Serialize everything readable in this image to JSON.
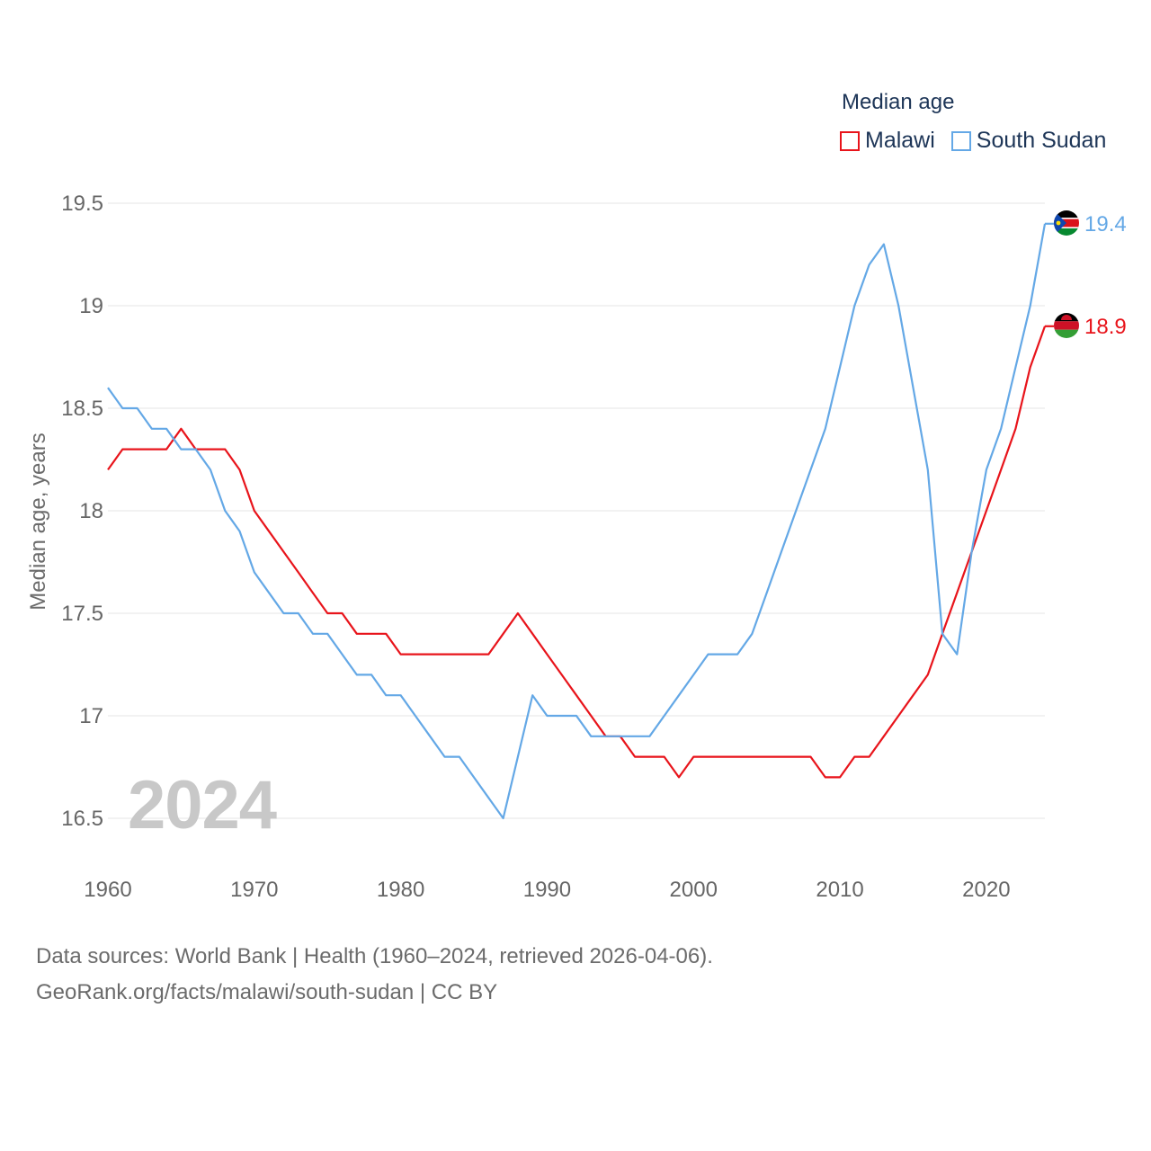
{
  "legend": {
    "title": "Median age",
    "items": [
      {
        "name": "Malawi",
        "color": "#e8141b"
      },
      {
        "name": "South Sudan",
        "color": "#64a8e6"
      }
    ]
  },
  "year_label": "2024",
  "source": {
    "line1": "Data sources: World Bank | Health (1960–2024, retrieved 2026-04-06).",
    "line2": "GeoRank.org/facts/malawi/south-sudan | CC BY"
  },
  "chart_data": {
    "type": "line",
    "title": "Median age",
    "xlabel": "",
    "ylabel": "Median age, years",
    "xlim": [
      1960,
      2024
    ],
    "ylim": [
      16.3,
      19.6
    ],
    "x_ticks": [
      1960,
      1970,
      1980,
      1990,
      2000,
      2010,
      2020
    ],
    "y_ticks": [
      {
        "value": 16.5,
        "label": "16.5"
      },
      {
        "value": 17,
        "label": "17"
      },
      {
        "value": 17.5,
        "label": "17.5"
      },
      {
        "value": 18,
        "label": "18"
      },
      {
        "value": 18.5,
        "label": "18.5"
      },
      {
        "value": 19,
        "label": "19"
      },
      {
        "value": 19.5,
        "label": "19.5"
      }
    ],
    "x": [
      1960,
      1961,
      1962,
      1963,
      1964,
      1965,
      1966,
      1967,
      1968,
      1969,
      1970,
      1971,
      1972,
      1973,
      1974,
      1975,
      1976,
      1977,
      1978,
      1979,
      1980,
      1981,
      1982,
      1983,
      1984,
      1985,
      1986,
      1987,
      1988,
      1989,
      1990,
      1991,
      1992,
      1993,
      1994,
      1995,
      1996,
      1997,
      1998,
      1999,
      2000,
      2001,
      2002,
      2003,
      2004,
      2005,
      2006,
      2007,
      2008,
      2009,
      2010,
      2011,
      2012,
      2013,
      2014,
      2015,
      2016,
      2017,
      2018,
      2019,
      2020,
      2021,
      2022,
      2023,
      2024
    ],
    "series": [
      {
        "name": "Malawi",
        "color": "#e8141b",
        "end_label": "18.9",
        "values": [
          18.2,
          18.3,
          18.3,
          18.3,
          18.3,
          18.4,
          18.3,
          18.3,
          18.3,
          18.2,
          18.0,
          17.9,
          17.8,
          17.7,
          17.6,
          17.5,
          17.5,
          17.4,
          17.4,
          17.4,
          17.3,
          17.3,
          17.3,
          17.3,
          17.3,
          17.3,
          17.3,
          17.4,
          17.5,
          17.4,
          17.3,
          17.2,
          17.1,
          17.0,
          16.9,
          16.9,
          16.8,
          16.8,
          16.8,
          16.7,
          16.8,
          16.8,
          16.8,
          16.8,
          16.8,
          16.8,
          16.8,
          16.8,
          16.8,
          16.7,
          16.7,
          16.8,
          16.8,
          16.9,
          17.0,
          17.1,
          17.2,
          17.4,
          17.6,
          17.8,
          18.0,
          18.2,
          18.4,
          18.7,
          18.9
        ]
      },
      {
        "name": "South Sudan",
        "color": "#64a8e6",
        "end_label": "19.4",
        "values": [
          18.6,
          18.5,
          18.5,
          18.4,
          18.4,
          18.3,
          18.3,
          18.2,
          18.0,
          17.9,
          17.7,
          17.6,
          17.5,
          17.5,
          17.4,
          17.4,
          17.3,
          17.2,
          17.2,
          17.1,
          17.1,
          17.0,
          16.9,
          16.8,
          16.8,
          16.7,
          16.6,
          16.5,
          16.8,
          17.1,
          17.0,
          17.0,
          17.0,
          16.9,
          16.9,
          16.9,
          16.9,
          16.9,
          17.0,
          17.1,
          17.2,
          17.3,
          17.3,
          17.3,
          17.4,
          17.6,
          17.8,
          18.0,
          18.2,
          18.4,
          18.7,
          19.0,
          19.2,
          19.3,
          19.0,
          18.6,
          18.2,
          17.4,
          17.3,
          17.8,
          18.2,
          18.4,
          18.7,
          19.0,
          19.4
        ]
      }
    ]
  }
}
